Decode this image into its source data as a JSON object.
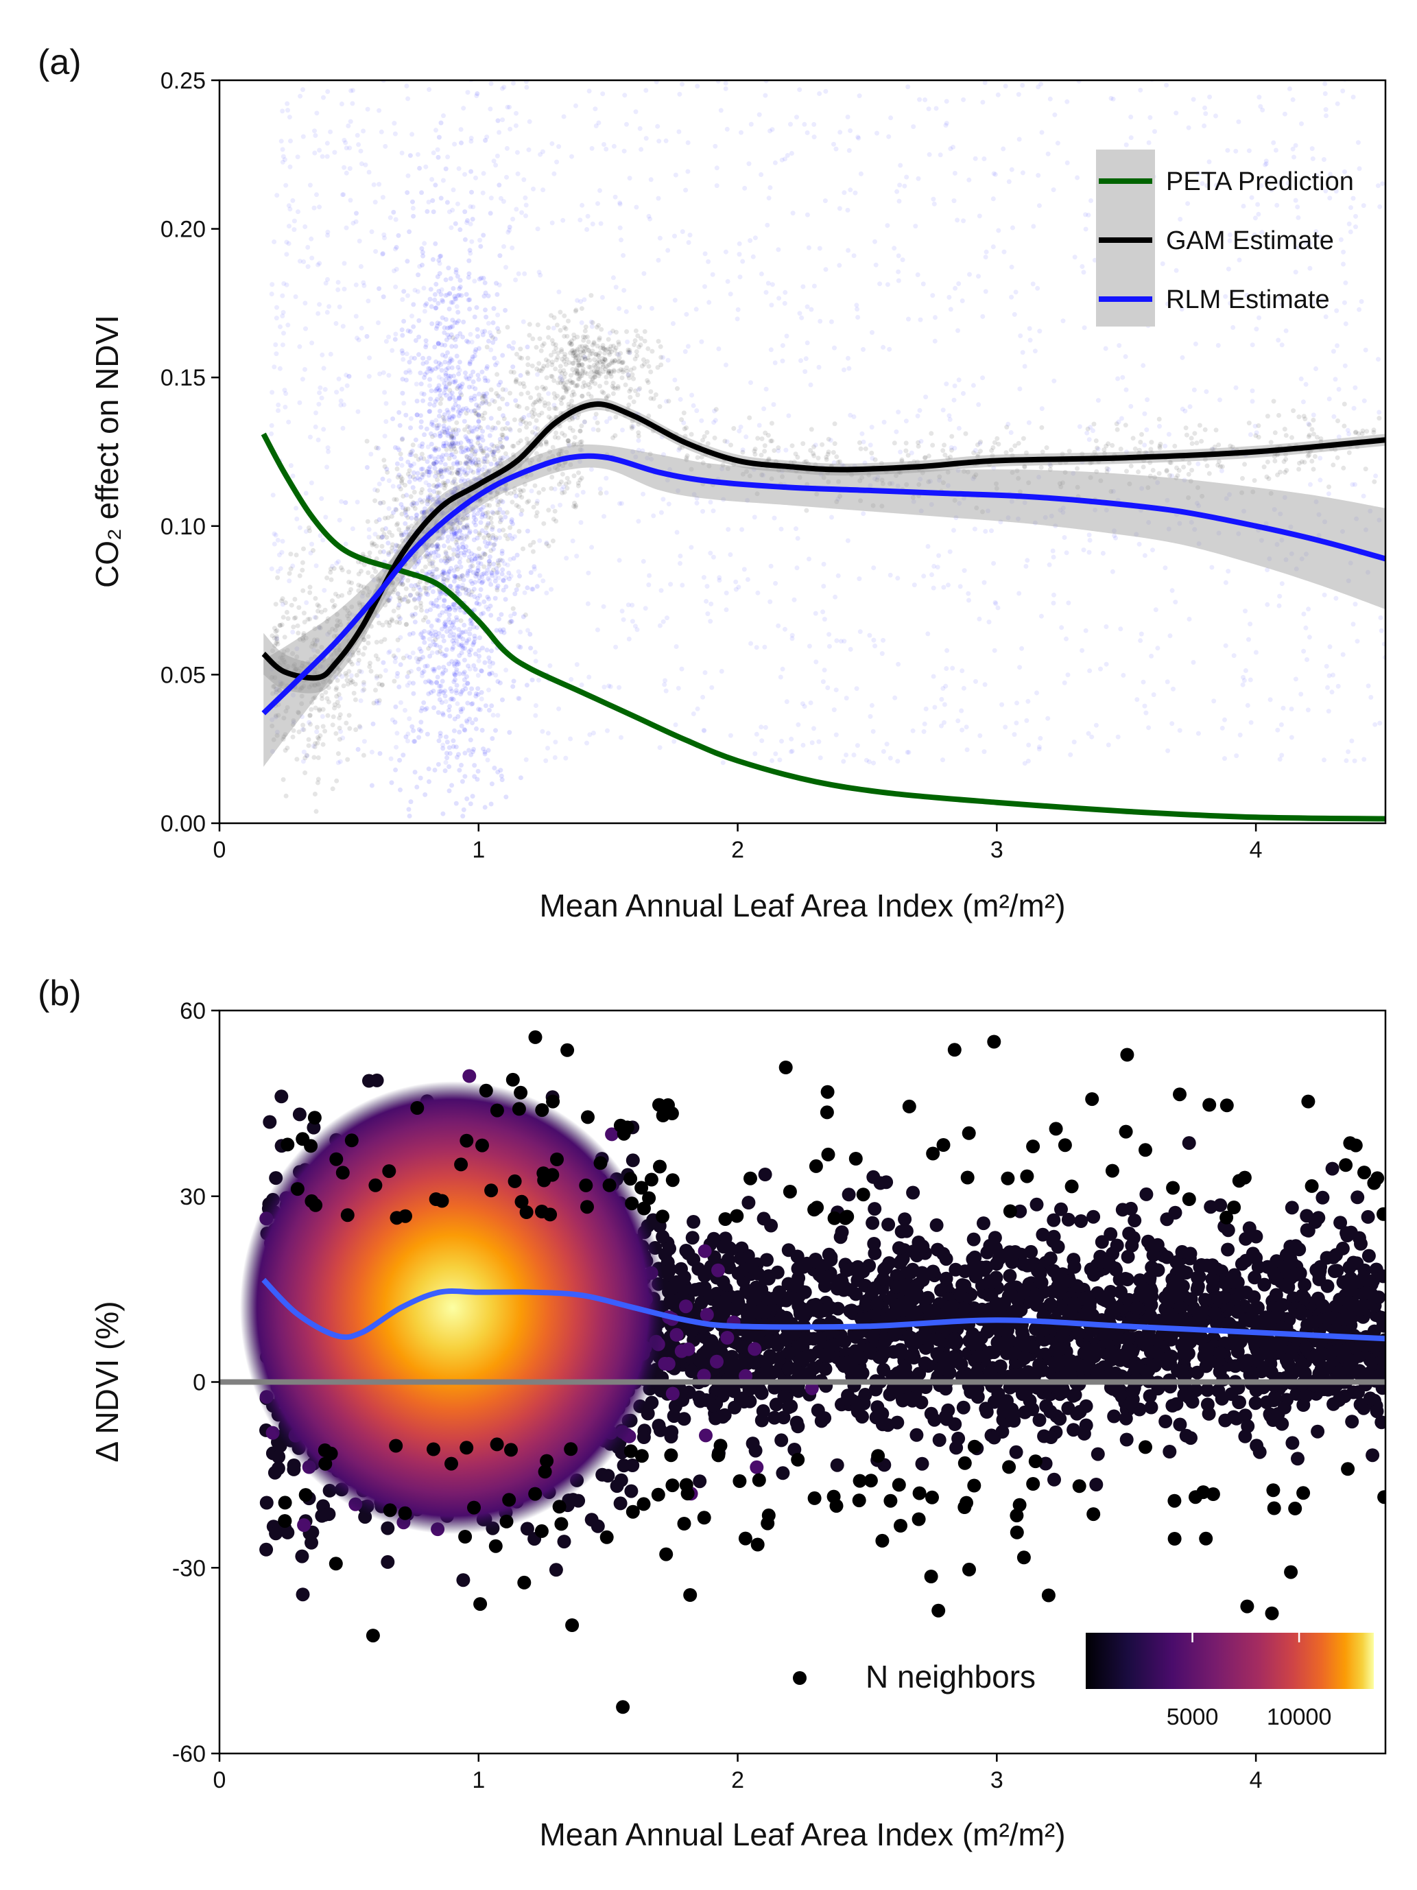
{
  "chart_data": [
    {
      "panel_label": "(a)",
      "type": "scatter",
      "xlabel": "Mean Annual Leaf Area Index (m²/m²)",
      "ylabel": "CO₂ effect on NDVI",
      "xlim": [
        0,
        4.5
      ],
      "ylim": [
        0,
        0.25
      ],
      "xticks": [
        0,
        1,
        2,
        3,
        4
      ],
      "yticks": [
        "0.00",
        "0.05",
        "0.10",
        "0.15",
        "0.20",
        "0.25"
      ],
      "grid": false,
      "legend_position": "top-right",
      "series": [
        {
          "name": "PETA Prediction",
          "type": "line",
          "color": "#006400",
          "x": [
            0.17,
            0.25,
            0.35,
            0.45,
            0.55,
            0.7,
            0.85,
            1.0,
            1.1,
            1.2,
            1.4,
            1.6,
            1.8,
            2.0,
            2.3,
            2.6,
            3.0,
            3.5,
            4.0,
            4.5
          ],
          "y": [
            0.131,
            0.118,
            0.104,
            0.094,
            0.089,
            0.085,
            0.08,
            0.068,
            0.058,
            0.052,
            0.044,
            0.036,
            0.028,
            0.021,
            0.014,
            0.01,
            0.007,
            0.004,
            0.002,
            0.0015
          ]
        },
        {
          "name": "GAM Estimate",
          "type": "line",
          "color": "#000000",
          "x": [
            0.17,
            0.25,
            0.38,
            0.45,
            0.55,
            0.7,
            0.85,
            1.0,
            1.15,
            1.3,
            1.45,
            1.6,
            1.8,
            2.0,
            2.2,
            2.4,
            2.7,
            3.0,
            3.5,
            4.0,
            4.5
          ],
          "y": [
            0.057,
            0.051,
            0.049,
            0.054,
            0.066,
            0.09,
            0.106,
            0.114,
            0.122,
            0.135,
            0.141,
            0.137,
            0.128,
            0.122,
            0.12,
            0.119,
            0.12,
            0.122,
            0.123,
            0.125,
            0.129
          ],
          "ci_upper": [
            0.064,
            0.057,
            0.054,
            0.059,
            0.071,
            0.094,
            0.11,
            0.117,
            0.125,
            0.137,
            0.143,
            0.139,
            0.13,
            0.124,
            0.122,
            0.121,
            0.122,
            0.124,
            0.125,
            0.127,
            0.131
          ],
          "ci_lower": [
            0.05,
            0.045,
            0.044,
            0.049,
            0.061,
            0.086,
            0.102,
            0.111,
            0.119,
            0.133,
            0.139,
            0.135,
            0.126,
            0.12,
            0.118,
            0.117,
            0.118,
            0.12,
            0.121,
            0.123,
            0.127
          ]
        },
        {
          "name": "RLM Estimate",
          "type": "line",
          "color": "#1414ff",
          "x": [
            0.17,
            0.3,
            0.45,
            0.6,
            0.75,
            0.9,
            1.05,
            1.2,
            1.35,
            1.5,
            1.7,
            1.9,
            2.2,
            2.5,
            2.8,
            3.1,
            3.4,
            3.7,
            4.0,
            4.25,
            4.5
          ],
          "y": [
            0.037,
            0.048,
            0.061,
            0.076,
            0.092,
            0.104,
            0.113,
            0.119,
            0.123,
            0.123,
            0.118,
            0.115,
            0.113,
            0.112,
            0.111,
            0.11,
            0.108,
            0.105,
            0.1,
            0.095,
            0.089
          ],
          "ci_upper": [
            0.055,
            0.062,
            0.071,
            0.083,
            0.097,
            0.108,
            0.117,
            0.123,
            0.127,
            0.127,
            0.124,
            0.121,
            0.119,
            0.119,
            0.119,
            0.119,
            0.118,
            0.116,
            0.113,
            0.11,
            0.106
          ],
          "ci_lower": [
            0.019,
            0.034,
            0.051,
            0.069,
            0.087,
            0.1,
            0.109,
            0.115,
            0.119,
            0.119,
            0.112,
            0.109,
            0.107,
            0.105,
            0.103,
            0.101,
            0.098,
            0.094,
            0.087,
            0.08,
            0.072
          ]
        }
      ],
      "scatter_clouds": [
        {
          "color": "#0000ff",
          "note_on_style": "faint transparent points"
        },
        {
          "color": "#000000",
          "note_on_style": "faint transparent points"
        }
      ]
    },
    {
      "panel_label": "(b)",
      "type": "scatter",
      "xlabel": "Mean Annual Leaf Area Index (m²/m²)",
      "ylabel": "Δ NDVI (%)",
      "xlim": [
        0,
        4.5
      ],
      "ylim": [
        -60,
        60
      ],
      "xticks": [
        0,
        1,
        2,
        3,
        4
      ],
      "yticks": [
        "-60",
        "-30",
        "0",
        "30",
        "60"
      ],
      "grid": false,
      "reference_line": {
        "y": 0,
        "color": "#808080"
      },
      "series": [
        {
          "name": "",
          "type": "line",
          "color": "#3a5fff",
          "x": [
            0.17,
            0.3,
            0.45,
            0.55,
            0.7,
            0.85,
            1.0,
            1.2,
            1.4,
            1.6,
            1.8,
            2.0,
            2.5,
            3.0,
            3.5,
            4.0,
            4.5
          ],
          "y": [
            16.5,
            11,
            7.5,
            8,
            12,
            14.5,
            14.5,
            14.5,
            14,
            12,
            10,
            9,
            9,
            10,
            9,
            8,
            7
          ]
        }
      ],
      "colorbar": {
        "label": "N neighbors",
        "ticks": [
          "5000",
          "10000"
        ],
        "tick_values": [
          5000,
          10000
        ],
        "range": [
          0,
          13500
        ],
        "colormap": "inferno",
        "position": "bottom-right"
      }
    }
  ]
}
